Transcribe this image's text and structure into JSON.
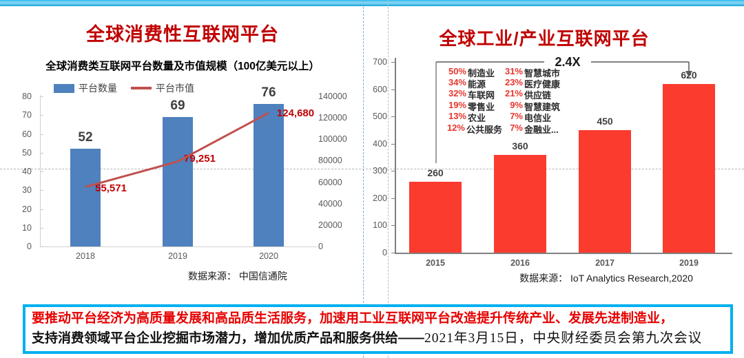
{
  "colors": {
    "accent_cyan": "#00B0F0",
    "title_red": "#C00000",
    "bar_blue": "#4E81BD",
    "line_red": "#C0504D",
    "line_label_red": "#C00000",
    "bar_red": "#FA3B2E",
    "pct_red": "#E8352B",
    "quote_red": "#E60000",
    "quote_border": "#00B0F0"
  },
  "left_panel": {
    "title": "全球消费性互联网平台",
    "subtitle": "全球消费类互联网平台数量及市值规模（100亿美元以上）",
    "legend": {
      "bars": "平台数量",
      "line": "平台市值"
    },
    "source": "数据来源： 中国信通院"
  },
  "right_panel": {
    "title": "全球工业/产业互联网平台",
    "source": "数据来源： IoT Analytics Research,2020"
  },
  "chart_data": [
    {
      "type": "bar+line",
      "title": "全球消费类互联网平台数量及市值规模（100亿美元以上）",
      "categories": [
        "2018",
        "2019",
        "2020"
      ],
      "series": [
        {
          "name": "平台数量",
          "type": "bar",
          "axis": "left",
          "values": [
            52,
            69,
            76
          ]
        },
        {
          "name": "平台市值",
          "type": "line",
          "axis": "right",
          "values": [
            55571,
            79251,
            124680
          ],
          "value_labels": [
            "55,571",
            "79,251",
            "124,680"
          ]
        }
      ],
      "ylim_left": [
        0,
        80
      ],
      "yticks_left": [
        0,
        10,
        20,
        30,
        40,
        50,
        60,
        70,
        80
      ],
      "ylim_right": [
        0,
        140000
      ],
      "yticks_right": [
        0,
        20000,
        40000,
        60000,
        80000,
        100000,
        120000,
        140000
      ],
      "grid": false,
      "legend_position": "top"
    },
    {
      "type": "bar",
      "title": "全球工业/产业互联网平台",
      "categories": [
        "2015",
        "2016",
        "2017",
        "2019"
      ],
      "values": [
        260,
        360,
        450,
        620
      ],
      "ylim": [
        0,
        700
      ],
      "yticks": [
        0,
        100,
        200,
        300,
        400,
        500,
        600,
        700
      ],
      "grid": false,
      "annotation": "2.4X",
      "breakdown": [
        {
          "left_pct": "50%",
          "left_name": "制造业",
          "right_pct": "31%",
          "right_name": "智慧城市"
        },
        {
          "left_pct": "34%",
          "left_name": "能源",
          "right_pct": "23%",
          "right_name": "医疗健康"
        },
        {
          "left_pct": "32%",
          "left_name": "车联网",
          "right_pct": "21%",
          "right_name": "供应链"
        },
        {
          "left_pct": "19%",
          "left_name": "零售业",
          "right_pct": "9%",
          "right_name": "智慧建筑"
        },
        {
          "left_pct": "13%",
          "left_name": "农业",
          "right_pct": "7%",
          "right_name": "电信业"
        },
        {
          "left_pct": "12%",
          "left_name": "公共服务",
          "right_pct": "7%",
          "right_name": "金融业..."
        }
      ]
    }
  ],
  "quote": {
    "line1": "要推动平台经济为高质量发展和高品质生活服务，加速用工业互联网平台改造提升传统产业、发展先进制造业，",
    "line2": "支持消费领域平台企业挖掘市场潜力，增加优质产品和服务供给",
    "dash": "——",
    "citation": "2021年3月15日，中央财经委员会第九次会议"
  }
}
